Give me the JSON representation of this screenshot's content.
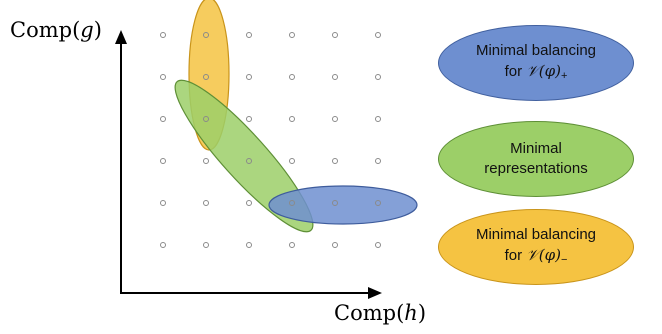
{
  "axes": {
    "y_label": {
      "fn": "Comp",
      "open": "(",
      "var": "g",
      "close": ")"
    },
    "x_label": {
      "fn": "Comp",
      "open": "(",
      "var": "h",
      "close": ")"
    }
  },
  "grid": {
    "columns": 6,
    "rows": 6,
    "dot_color": "#8a8a8a"
  },
  "regions": [
    {
      "name": "yellow",
      "color": "#f5c342",
      "stroke": "#c9941a"
    },
    {
      "name": "green",
      "color": "#9ccf68",
      "stroke": "#5e8f36"
    },
    {
      "name": "blue",
      "color": "#6e8fd0",
      "stroke": "#3e5c9c"
    }
  ],
  "legend": {
    "blue": {
      "line1": "Minimal balancing",
      "line2_prefix": "for ",
      "math": "𝒱(φ)",
      "sub": "+",
      "color": "#6e8fd0",
      "stroke": "#41609f"
    },
    "green": {
      "line1": "Minimal",
      "line2": "representations",
      "color": "#9ccf68",
      "stroke": "#5e8f36"
    },
    "yellow": {
      "line1": "Minimal balancing",
      "line2_prefix": "for ",
      "math": "𝒱(φ)",
      "sub": "−",
      "color": "#f5c342",
      "stroke": "#c9941a"
    }
  }
}
